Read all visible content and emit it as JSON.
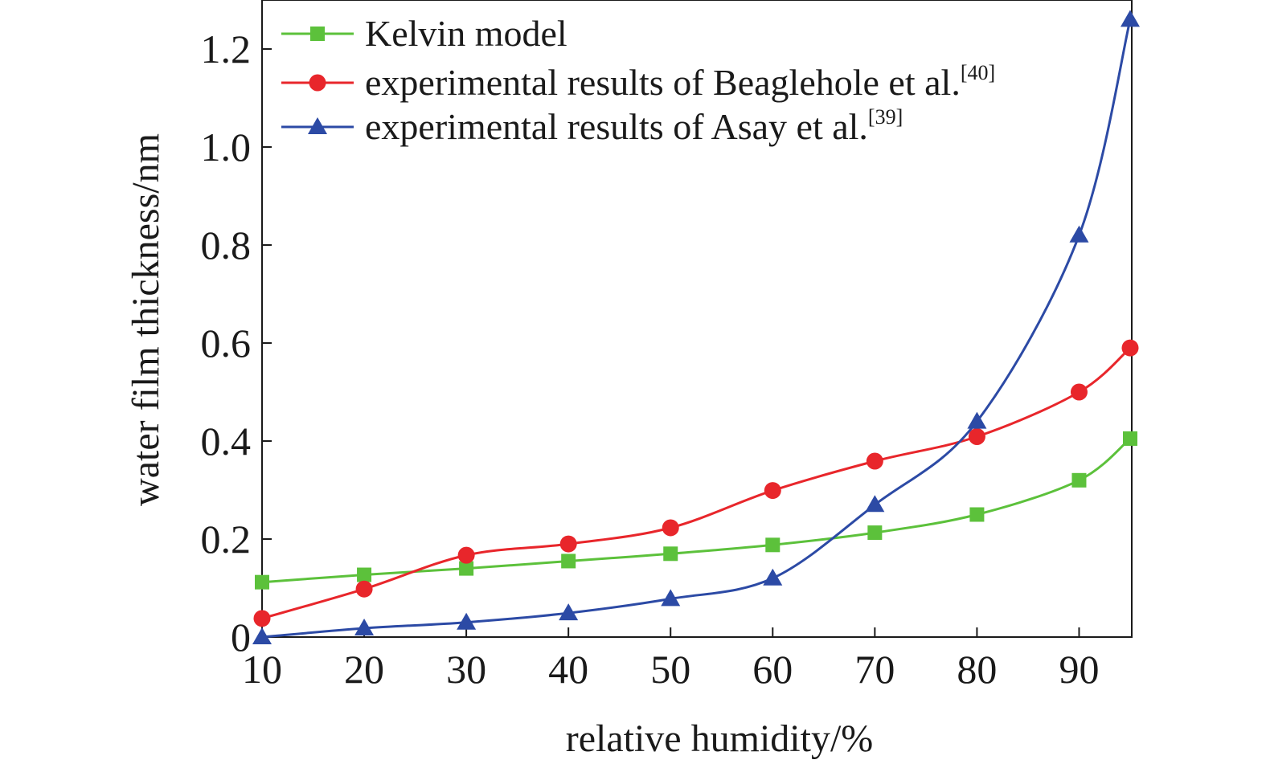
{
  "chart_data": {
    "type": "line",
    "xlabel": "relative humidity/%",
    "ylabel": "water film thickness/nm",
    "xlim": [
      10,
      95
    ],
    "ylim": [
      0,
      1.3
    ],
    "xticks": [
      10,
      20,
      30,
      40,
      50,
      60,
      70,
      80,
      90
    ],
    "xtick_labels": [
      "10",
      "20",
      "30",
      "40",
      "50",
      "60",
      "70",
      "80",
      "90"
    ],
    "yticks": [
      0,
      0.2,
      0.4,
      0.6,
      0.8,
      1.0,
      1.2
    ],
    "ytick_labels": [
      "0",
      "0.2",
      "0.4",
      "0.6",
      "0.8",
      "1.0",
      "1.2"
    ],
    "grid": false,
    "legend_position": "top-left",
    "series": [
      {
        "name": "Kelvin model",
        "legend_main": "Kelvin model",
        "legend_sup": "",
        "color": "#5cc13b",
        "marker": "square",
        "x": [
          10,
          20,
          30,
          40,
          50,
          60,
          70,
          80,
          90,
          95
        ],
        "y": [
          0.112,
          0.127,
          0.14,
          0.155,
          0.17,
          0.188,
          0.213,
          0.25,
          0.32,
          0.405
        ]
      },
      {
        "name": "experimental results of Beaglehole et al.[40]",
        "legend_main": "experimental results of Beaglehole et al.",
        "legend_sup": "[40]",
        "color": "#e8262b",
        "marker": "circle",
        "x": [
          10,
          20,
          30,
          40,
          50,
          60,
          70,
          80,
          90,
          95
        ],
        "y": [
          0.038,
          0.098,
          0.167,
          0.19,
          0.223,
          0.299,
          0.359,
          0.409,
          0.5,
          0.59
        ]
      },
      {
        "name": "experimental results of Asay et al.[39]",
        "legend_main": "experimental results of Asay et al.",
        "legend_sup": "[39]",
        "color": "#2c4aa5",
        "marker": "triangle",
        "x": [
          10,
          20,
          30,
          40,
          50,
          60,
          70,
          80,
          90,
          95
        ],
        "y": [
          0.0,
          0.018,
          0.03,
          0.049,
          0.078,
          0.12,
          0.27,
          0.44,
          0.82,
          1.26
        ]
      }
    ]
  }
}
